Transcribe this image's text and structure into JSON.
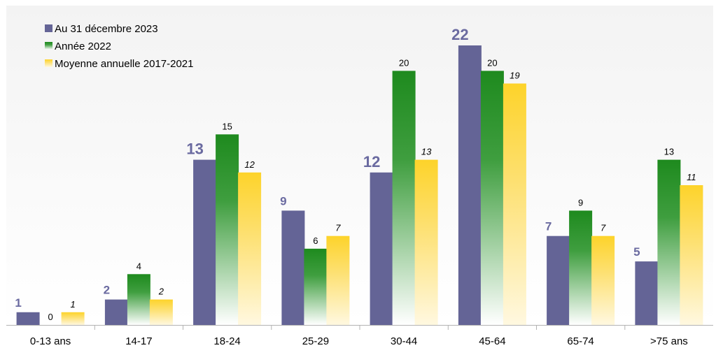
{
  "chart_data": {
    "type": "bar",
    "title": "",
    "xlabel": "",
    "ylabel": "",
    "ylim": [
      0,
      22
    ],
    "grid": false,
    "legend_position": "top-left",
    "categories": [
      "0-13 ans",
      "14-17",
      "18-24",
      "25-29",
      "30-44",
      "45-64",
      "65-74",
      ">75 ans"
    ],
    "series": [
      {
        "name": "Au 31 décembre 2023",
        "values": [
          1,
          2,
          13,
          9,
          12,
          22,
          7,
          5
        ],
        "color": "#646496"
      },
      {
        "name": "Année 2022",
        "values": [
          0,
          4,
          15,
          6,
          20,
          20,
          9,
          13
        ],
        "color": "#1e8a1e"
      },
      {
        "name": "Moyenne annuelle 2017-2021",
        "values": [
          1,
          2,
          12,
          7,
          13,
          19,
          7,
          11
        ],
        "color": "#fdd32a"
      }
    ]
  }
}
